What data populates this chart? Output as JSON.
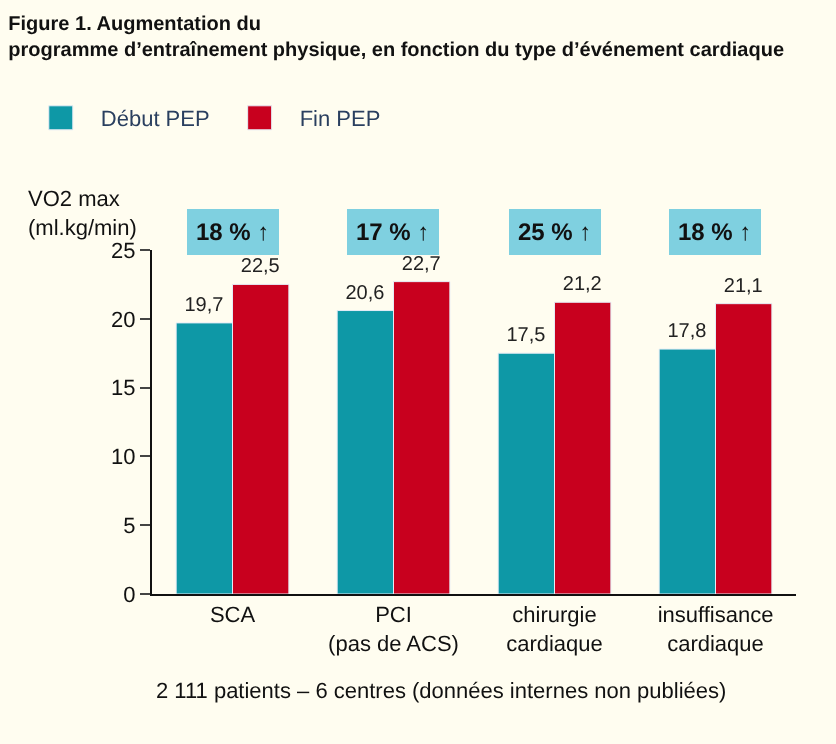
{
  "chart_data": {
    "type": "bar",
    "title": "Figure 1. Augmentation du\nprogramme d’entraînement physique, en fonction du type d’événement cardiaque",
    "ylabel": "VO2 max\n(ml.kg/min)",
    "categories": [
      "SCA",
      "PCI\n(pas de ACS)",
      "chirurgie\ncardiaque",
      "insuffisance\ncardiaque"
    ],
    "series": [
      {
        "name": "Début PEP",
        "color": "#0e98a6",
        "values": [
          19.7,
          20.6,
          17.5,
          17.8
        ],
        "value_labels": [
          "19,7",
          "20,6",
          "17,5",
          "17,8"
        ]
      },
      {
        "name": "Fin PEP",
        "color": "#c8001e",
        "values": [
          22.5,
          22.7,
          21.2,
          21.1
        ],
        "value_labels": [
          "22,5",
          "22,7",
          "21,2",
          "21,1"
        ]
      }
    ],
    "ylim": [
      0,
      25
    ],
    "yticks": [
      0,
      5,
      10,
      15,
      20,
      25
    ],
    "grid": false,
    "legend": "top left",
    "annotations": [
      "18 % ↑",
      "17 % ↑",
      "25 % ↑",
      "18 % ↑",
      "2 111 patients – 6 centres (données internes non publiées)"
    ]
  }
}
